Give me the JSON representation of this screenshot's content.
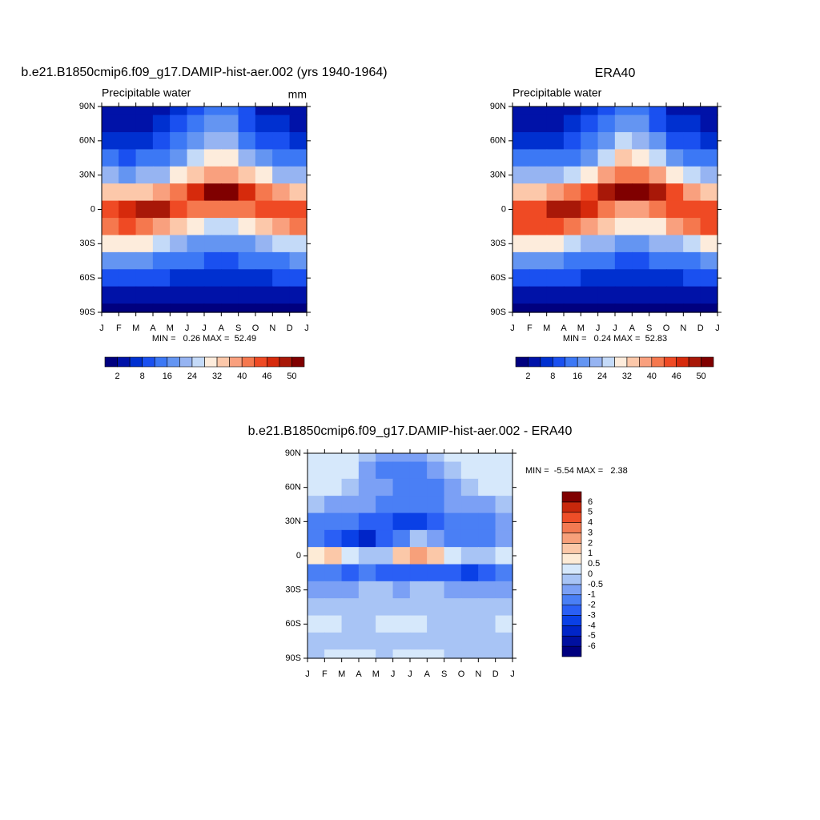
{
  "chart_data": [
    {
      "type": "contour",
      "title": "b.e21.B1850cmip6.f09_g17.DAMIP-hist-aer.002 (yrs 1940-1964)",
      "subtitle": "Precipitable water",
      "units": "mm",
      "categories": [
        "J",
        "F",
        "M",
        "A",
        "M",
        "J",
        "J",
        "A",
        "S",
        "O",
        "N",
        "D",
        "J"
      ],
      "ylim": [
        -90,
        90
      ],
      "yticks": [
        {
          "value": 90,
          "label": "90N"
        },
        {
          "value": 60,
          "label": "60N"
        },
        {
          "value": 30,
          "label": "30N"
        },
        0,
        {
          "value": -30,
          "label": "30S"
        },
        {
          "value": -60,
          "label": "60S"
        },
        {
          "value": -90,
          "label": "90S"
        }
      ],
      "y": [
        90,
        75,
        60,
        45,
        30,
        15,
        0,
        -15,
        -30,
        -45,
        -60,
        -75,
        -90
      ],
      "z": [
        [
          2,
          2,
          2,
          3,
          6,
          10,
          13,
          12,
          8,
          4,
          3,
          2
        ],
        [
          4,
          4,
          4,
          5,
          8,
          13,
          17,
          16,
          11,
          7,
          5,
          4
        ],
        [
          7,
          7,
          7,
          9,
          12,
          18,
          23,
          21,
          15,
          11,
          8,
          7
        ],
        [
          12,
          11,
          12,
          14,
          18,
          25,
          30,
          29,
          23,
          17,
          14,
          12
        ],
        [
          20,
          19,
          20,
          23,
          28,
          34,
          38,
          38,
          34,
          28,
          23,
          21
        ],
        [
          33,
          32,
          33,
          36,
          40,
          46,
          51,
          51,
          47,
          42,
          37,
          34
        ],
        [
          45,
          47,
          49,
          48,
          45,
          42,
          40,
          40,
          41,
          43,
          44,
          45
        ],
        [
          42,
          43,
          42,
          38,
          33,
          29,
          27,
          26,
          28,
          32,
          37,
          41
        ],
        [
          28,
          29,
          28,
          25,
          22,
          19,
          18,
          18,
          19,
          21,
          24,
          27
        ],
        [
          17,
          18,
          17,
          15,
          13,
          12,
          11,
          11,
          12,
          13,
          15,
          16
        ],
        [
          9,
          10,
          9,
          8,
          7,
          6,
          6,
          6,
          6,
          7,
          8,
          9
        ],
        [
          3,
          3,
          3,
          2,
          2,
          2,
          2,
          2,
          2,
          2,
          3,
          3
        ],
        [
          1,
          1,
          1,
          1,
          1,
          1,
          1,
          1,
          1,
          1,
          1,
          1
        ]
      ],
      "minmax": "MIN =   0.26 MAX =  52.49",
      "colorbar": {
        "levels": [
          2,
          5,
          8,
          12,
          16,
          20,
          24,
          28,
          32,
          36,
          40,
          43,
          46,
          48,
          50
        ],
        "ticks": [
          2,
          8,
          16,
          24,
          32,
          40,
          46,
          50
        ],
        "colors": [
          "#00007f",
          "#0012a8",
          "#0030d0",
          "#1a50f0",
          "#3c78f5",
          "#6495f2",
          "#96b4f2",
          "#c4daf8",
          "#fdecdc",
          "#fcc8aa",
          "#f9a07e",
          "#f5784e",
          "#ef4a24",
          "#d62a0c",
          "#a81808",
          "#800000"
        ]
      }
    },
    {
      "type": "contour",
      "title": "ERA40",
      "subtitle": "Precipitable water",
      "categories": [
        "J",
        "F",
        "M",
        "A",
        "M",
        "J",
        "J",
        "A",
        "S",
        "O",
        "N",
        "D",
        "J"
      ],
      "ylim": [
        -90,
        90
      ],
      "yticks": [
        {
          "value": 90,
          "label": "90N"
        },
        {
          "value": 60,
          "label": "60N"
        },
        {
          "value": 30,
          "label": "30N"
        },
        0,
        {
          "value": -30,
          "label": "30S"
        },
        {
          "value": -60,
          "label": "60S"
        },
        {
          "value": -90,
          "label": "90S"
        }
      ],
      "y": [
        90,
        75,
        60,
        45,
        30,
        15,
        0,
        -15,
        -30,
        -45,
        -60,
        -75,
        -90
      ],
      "z": [
        [
          2,
          2,
          2,
          3,
          7,
          11,
          14,
          12,
          8,
          4,
          3,
          2
        ],
        [
          4,
          4,
          4,
          6,
          9,
          14,
          18,
          17,
          11,
          7,
          5,
          4
        ],
        [
          7,
          7,
          7,
          9,
          13,
          19,
          24,
          22,
          16,
          11,
          8,
          7
        ],
        [
          12,
          12,
          13,
          15,
          19,
          26,
          32,
          30,
          24,
          18,
          14,
          13
        ],
        [
          21,
          21,
          22,
          26,
          31,
          37,
          41,
          40,
          36,
          30,
          24,
          22
        ],
        [
          35,
          35,
          37,
          40,
          43,
          48,
          51,
          51,
          48,
          43,
          38,
          35
        ],
        [
          45,
          45,
          48,
          48,
          46,
          41,
          38,
          39,
          41,
          44,
          45,
          45
        ],
        [
          44,
          45,
          45,
          40,
          36,
          32,
          30,
          29,
          31,
          36,
          40,
          43
        ],
        [
          29,
          30,
          29,
          26,
          23,
          20,
          19,
          19,
          20,
          22,
          25,
          28
        ],
        [
          17,
          18,
          17,
          15,
          13,
          12,
          11,
          11,
          12,
          13,
          15,
          16
        ],
        [
          9,
          10,
          9,
          8,
          7,
          6,
          6,
          6,
          6,
          7,
          8,
          9
        ],
        [
          3,
          3,
          3,
          3,
          2,
          2,
          2,
          2,
          2,
          2,
          3,
          3
        ],
        [
          1,
          1,
          1,
          1,
          1,
          1,
          1,
          1,
          1,
          1,
          1,
          1
        ]
      ],
      "minmax": "MIN =   0.24 MAX =  52.83",
      "colorbar": {
        "levels": [
          2,
          5,
          8,
          12,
          16,
          20,
          24,
          28,
          32,
          36,
          40,
          43,
          46,
          48,
          50
        ],
        "ticks": [
          2,
          8,
          16,
          24,
          32,
          40,
          46,
          50
        ],
        "colors": [
          "#00007f",
          "#0012a8",
          "#0030d0",
          "#1a50f0",
          "#3c78f5",
          "#6495f2",
          "#96b4f2",
          "#c4daf8",
          "#fdecdc",
          "#fcc8aa",
          "#f9a07e",
          "#f5784e",
          "#ef4a24",
          "#d62a0c",
          "#a81808",
          "#800000"
        ]
      }
    },
    {
      "type": "contour",
      "title": "b.e21.B1850cmip6.f09_g17.DAMIP-hist-aer.002 - ERA40",
      "categories": [
        "J",
        "F",
        "M",
        "A",
        "M",
        "J",
        "J",
        "A",
        "S",
        "O",
        "N",
        "D",
        "J"
      ],
      "ylim": [
        -90,
        90
      ],
      "yticks": [
        {
          "value": 90,
          "label": "90N"
        },
        {
          "value": 60,
          "label": "60N"
        },
        {
          "value": 30,
          "label": "30N"
        },
        0,
        {
          "value": -30,
          "label": "30S"
        },
        {
          "value": -60,
          "label": "60S"
        },
        {
          "value": -90,
          "label": "90S"
        }
      ],
      "y": [
        90,
        75,
        60,
        45,
        30,
        15,
        0,
        -15,
        -30,
        -45,
        -60,
        -75,
        -90
      ],
      "z": [
        [
          0.3,
          0.3,
          0.3,
          -0.2,
          -0.8,
          -1,
          -0.6,
          -0.4,
          0.2,
          0.3,
          0.3,
          0.3
        ],
        [
          0.2,
          0.2,
          0,
          -0.6,
          -1.2,
          -1.5,
          -1.2,
          -0.8,
          -0.3,
          0.2,
          0.2,
          0.2
        ],
        [
          0.2,
          0.2,
          -0.3,
          -0.6,
          -1,
          -1.5,
          -1.8,
          -1.2,
          -0.6,
          -0.3,
          0.2,
          0.3
        ],
        [
          -0.4,
          -0.6,
          -0.8,
          -1,
          -1.2,
          -1.5,
          -2,
          -1.5,
          -1,
          -0.8,
          -0.6,
          -0.4
        ],
        [
          -1.2,
          -1.5,
          -2,
          -2.5,
          -3,
          -3.5,
          -3.2,
          -2.5,
          -2,
          -1.5,
          -1.2,
          -1
        ],
        [
          -1.5,
          -2.5,
          -3.5,
          -4.5,
          -3,
          -1.5,
          -0.5,
          -1,
          -1.5,
          -1.5,
          -1.2,
          -1
        ],
        [
          0.5,
          1.5,
          0.2,
          -0.4,
          -0.3,
          1.5,
          2.2,
          1.2,
          0.2,
          -0.5,
          -0.3,
          0.2
        ],
        [
          -1.5,
          -2,
          -2.5,
          -2,
          -2.5,
          -3,
          -2.5,
          -2.5,
          -3,
          -3.5,
          -3,
          -2
        ],
        [
          -0.8,
          -0.8,
          -0.6,
          -0.5,
          -0.4,
          -0.6,
          -0.5,
          -0.4,
          -0.6,
          -0.8,
          -1,
          -0.9
        ],
        [
          -0.3,
          -0.3,
          -0.4,
          -0.4,
          -0.3,
          -0.2,
          -0.3,
          -0.4,
          -0.4,
          -0.3,
          -0.3,
          -0.3
        ],
        [
          0.2,
          0.1,
          -0.3,
          -0.3,
          0.2,
          0.3,
          0.2,
          -0.2,
          -0.3,
          -0.3,
          -0.2,
          0.2
        ],
        [
          -0.2,
          -0.2,
          -0.3,
          -0.3,
          -0.2,
          -0.2,
          -0.2,
          -0.3,
          -0.3,
          -0.3,
          -0.2,
          -0.2
        ],
        [
          -0.1,
          0.1,
          0.1,
          0,
          -0.1,
          0.1,
          0.1,
          0,
          -0.1,
          -0.1,
          -0.1,
          -0.1
        ]
      ],
      "minmax": "MIN =  -5.54 MAX =   2.38",
      "colorbar": {
        "levels": [
          -6,
          -5,
          -4,
          -3,
          -2,
          -1,
          -0.5,
          0,
          0.5,
          1,
          2,
          3,
          4,
          5,
          6
        ],
        "colors": [
          "#00007f",
          "#0010a0",
          "#0025c8",
          "#0a40e6",
          "#2a5ff5",
          "#4a7ff5",
          "#7ba0f5",
          "#a8c4f5",
          "#d6e8fb",
          "#fdebd6",
          "#fbc8a8",
          "#f7a07a",
          "#f37a52",
          "#ee4e28",
          "#c8280c",
          "#800000"
        ]
      }
    }
  ]
}
